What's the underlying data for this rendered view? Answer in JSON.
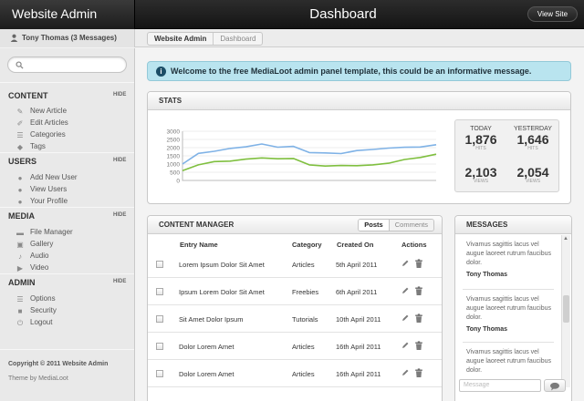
{
  "header": {
    "site_title": "Website Admin",
    "page_title": "Dashboard",
    "view_site_label": "View Site"
  },
  "user": {
    "label": "Tony Thomas (3 Messages)"
  },
  "breadcrumb": [
    "Website Admin",
    "Dashboard"
  ],
  "sidebar": {
    "hide_label": "HIDE",
    "sections": [
      {
        "title": "CONTENT",
        "items": [
          {
            "label": "New Article",
            "icon": "new-article-icon"
          },
          {
            "label": "Edit Articles",
            "icon": "edit-icon"
          },
          {
            "label": "Categories",
            "icon": "list-icon"
          },
          {
            "label": "Tags",
            "icon": "tag-icon"
          }
        ]
      },
      {
        "title": "USERS",
        "items": [
          {
            "label": "Add New User",
            "icon": "add-user-icon"
          },
          {
            "label": "View Users",
            "icon": "users-icon"
          },
          {
            "label": "Your Profile",
            "icon": "profile-icon"
          }
        ]
      },
      {
        "title": "MEDIA",
        "items": [
          {
            "label": "File Manager",
            "icon": "folder-icon"
          },
          {
            "label": "Gallery",
            "icon": "gallery-icon"
          },
          {
            "label": "Audio",
            "icon": "audio-icon"
          },
          {
            "label": "Video",
            "icon": "video-icon"
          }
        ]
      },
      {
        "title": "ADMIN",
        "items": [
          {
            "label": "Options",
            "icon": "options-icon"
          },
          {
            "label": "Security",
            "icon": "security-icon"
          },
          {
            "label": "Logout",
            "icon": "logout-icon"
          }
        ]
      }
    ],
    "copyright": "Copyright © 2011 Website Admin",
    "theme_credit": "Theme by MediaLoot"
  },
  "alert": {
    "text": "Welcome to the free MediaLoot admin panel template, this could be an informative message."
  },
  "stats": {
    "title": "STATS",
    "today_label": "TODAY",
    "yesterday_label": "YESTERDAY",
    "today_hits": "1,876",
    "today_views": "2,103",
    "yesterday_hits": "1,646",
    "yesterday_views": "2,054",
    "hits_label": "HITS",
    "views_label": "VIEWS"
  },
  "chart_data": {
    "type": "line",
    "title": "",
    "xlabel": "",
    "ylabel": "",
    "ylim": [
      0,
      3000
    ],
    "y_ticks": [
      "3000",
      "2500",
      "2000",
      "1500",
      "1000",
      "500",
      "0"
    ],
    "grid": true,
    "colors": [
      "#7fb2e6",
      "#7fbf3f"
    ],
    "series": [
      {
        "values": [
          1000,
          1650,
          1780,
          1950,
          2050,
          2220,
          2030,
          2080,
          1700,
          1680,
          1640,
          1820,
          1890,
          1970,
          2020,
          2040,
          2180
        ]
      },
      {
        "values": [
          600,
          950,
          1150,
          1180,
          1300,
          1370,
          1320,
          1340,
          950,
          880,
          910,
          900,
          950,
          1050,
          1280,
          1400,
          1600
        ]
      }
    ]
  },
  "content_manager": {
    "title": "CONTENT MANAGER",
    "tabs": [
      "Posts",
      "Comments"
    ],
    "columns": [
      "Entry Name",
      "Category",
      "Created On",
      "Actions"
    ],
    "rows": [
      {
        "name": "Lorem Ipsum Dolor Sit Amet",
        "category": "Articles",
        "date": "5th April 2011"
      },
      {
        "name": "Ipsum Lorem Dolor Sit Amet",
        "category": "Freebies",
        "date": "6th April 2011"
      },
      {
        "name": "Sit Amet Dolor Ipsum",
        "category": "Tutorials",
        "date": "10th April 2011"
      },
      {
        "name": "Dolor Lorem Amet",
        "category": "Articles",
        "date": "16th April 2011"
      },
      {
        "name": "Dolor Lorem Amet",
        "category": "Articles",
        "date": "16th April 2011"
      }
    ]
  },
  "messages": {
    "title": "MESSAGES",
    "items": [
      {
        "text": "Vivamus sagittis lacus vel augue laoreet rutrum faucibus dolor.",
        "author": "Tony Thomas"
      },
      {
        "text": "Vivamus sagittis lacus vel augue laoreet rutrum faucibus dolor.",
        "author": "Tony Thomas"
      },
      {
        "text": "Vivamus sagittis lacus vel augue laoreet rutrum faucibus dolor.",
        "author": ""
      }
    ],
    "input_placeholder": "Message"
  }
}
